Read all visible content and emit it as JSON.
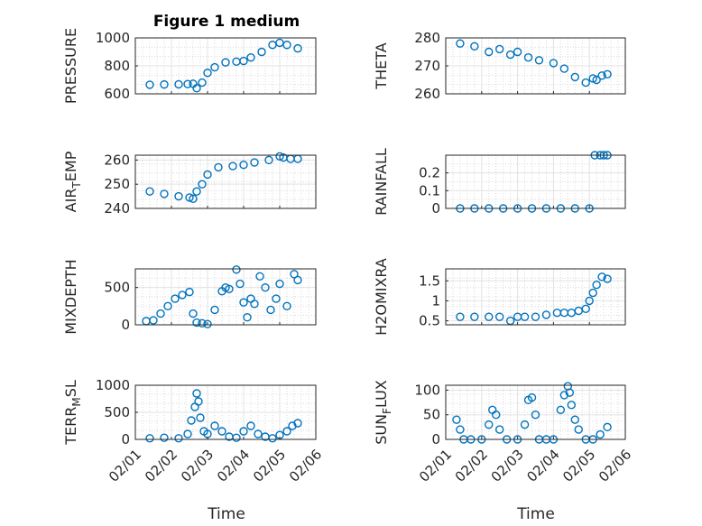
{
  "figure_title": "Figure 1 medium",
  "marker_color": "#0072BD",
  "x_label": "Time",
  "x_tick_labels": [
    "02/01",
    "02/02",
    "02/03",
    "02/04",
    "02/05",
    "02/06"
  ],
  "chart_data": [
    {
      "type": "scatter",
      "title": "Figure 1 medium",
      "ylabel": "PRESSURE",
      "ylabel_parts": [],
      "xlabel": "",
      "xlim": [
        0,
        5
      ],
      "ylim": [
        600,
        1000
      ],
      "yticks": [
        600,
        800,
        1000
      ],
      "ytick_labels": [
        "600",
        "800",
        "1000"
      ],
      "grid": true,
      "x": [
        0.4,
        0.8,
        1.2,
        1.45,
        1.6,
        1.7,
        1.85,
        2.0,
        2.2,
        2.5,
        2.8,
        3.0,
        3.2,
        3.5,
        3.8,
        4.0,
        4.2,
        4.5
      ],
      "y": [
        665,
        667,
        668,
        670,
        672,
        640,
        680,
        750,
        790,
        825,
        830,
        835,
        860,
        900,
        950,
        965,
        950,
        925
      ]
    },
    {
      "type": "scatter",
      "title": "",
      "ylabel": "THETA",
      "ylabel_parts": [],
      "xlabel": "",
      "xlim": [
        0,
        5
      ],
      "ylim": [
        260,
        280
      ],
      "yticks": [
        260,
        270,
        280
      ],
      "ytick_labels": [
        "260",
        "270",
        "280"
      ],
      "grid": true,
      "x": [
        0.4,
        0.8,
        1.2,
        1.5,
        1.8,
        2.0,
        2.3,
        2.6,
        3.0,
        3.3,
        3.6,
        3.9,
        4.1,
        4.2,
        4.35,
        4.5
      ],
      "y": [
        278,
        277,
        275,
        276,
        274,
        275,
        273,
        272,
        271,
        269,
        266,
        264,
        265.5,
        265,
        266.5,
        267
      ]
    },
    {
      "type": "scatter",
      "title": "",
      "ylabel": "",
      "ylabel_parts": [
        "AIR",
        "T",
        "EMP"
      ],
      "xlabel": "",
      "xlim": [
        0,
        5
      ],
      "ylim": [
        240,
        262
      ],
      "yticks": [
        240,
        250,
        260
      ],
      "ytick_labels": [
        "240",
        "250",
        "260"
      ],
      "grid": true,
      "x": [
        0.4,
        0.8,
        1.2,
        1.5,
        1.6,
        1.7,
        1.85,
        2.0,
        2.3,
        2.7,
        3.0,
        3.3,
        3.7,
        4.0,
        4.1,
        4.3,
        4.5
      ],
      "y": [
        247,
        246,
        245,
        244.5,
        244,
        247,
        250,
        254,
        257,
        257.5,
        258,
        259,
        260,
        261.5,
        261,
        260.5,
        260.5
      ]
    },
    {
      "type": "scatter",
      "title": "",
      "ylabel": "RAINFALL",
      "ylabel_parts": [],
      "xlabel": "",
      "xlim": [
        0,
        5
      ],
      "ylim": [
        0,
        0.3
      ],
      "yticks": [
        0,
        0.1,
        0.2
      ],
      "ytick_labels": [
        "0",
        "0.1",
        "0.2"
      ],
      "grid": true,
      "x": [
        0.4,
        0.8,
        1.2,
        1.6,
        2.0,
        2.4,
        2.8,
        3.2,
        3.6,
        4.0,
        4.15,
        4.3,
        4.4,
        4.5
      ],
      "y": [
        0,
        0,
        0,
        0,
        0,
        0,
        0,
        0,
        0,
        0,
        0.3,
        0.3,
        0.3,
        0.3
      ]
    },
    {
      "type": "scatter",
      "title": "",
      "ylabel": "MIXDEPTH",
      "ylabel_parts": [],
      "xlabel": "",
      "xlim": [
        0,
        5
      ],
      "ylim": [
        0,
        750
      ],
      "yticks": [
        0,
        500
      ],
      "ytick_labels": [
        "0",
        "500"
      ],
      "grid": true,
      "x": [
        0.3,
        0.5,
        0.7,
        0.9,
        1.1,
        1.3,
        1.5,
        1.6,
        1.7,
        1.85,
        2.0,
        2.2,
        2.4,
        2.5,
        2.6,
        2.8,
        2.9,
        3.0,
        3.1,
        3.2,
        3.3,
        3.45,
        3.6,
        3.75,
        3.9,
        4.0,
        4.2,
        4.4,
        4.5
      ],
      "y": [
        50,
        60,
        150,
        250,
        350,
        400,
        440,
        150,
        30,
        20,
        10,
        200,
        450,
        500,
        480,
        740,
        550,
        300,
        100,
        350,
        280,
        650,
        500,
        200,
        350,
        550,
        250,
        680,
        600
      ]
    },
    {
      "type": "scatter",
      "title": "",
      "ylabel": "H2OMIXRA",
      "ylabel_parts": [],
      "xlabel": "",
      "xlim": [
        0,
        5
      ],
      "ylim": [
        0.4,
        1.8
      ],
      "yticks": [
        0.5,
        1,
        1.5
      ],
      "ytick_labels": [
        "0.5",
        "1",
        "1.5"
      ],
      "grid": true,
      "x": [
        0.4,
        0.8,
        1.2,
        1.5,
        1.8,
        2.0,
        2.2,
        2.5,
        2.8,
        3.1,
        3.3,
        3.5,
        3.7,
        3.9,
        4.0,
        4.1,
        4.2,
        4.35,
        4.5
      ],
      "y": [
        0.6,
        0.6,
        0.6,
        0.6,
        0.5,
        0.6,
        0.6,
        0.6,
        0.65,
        0.7,
        0.7,
        0.7,
        0.75,
        0.8,
        1.0,
        1.2,
        1.4,
        1.6,
        1.55
      ]
    },
    {
      "type": "scatter",
      "title": "",
      "ylabel": "",
      "ylabel_parts": [
        "TERR",
        "M",
        "SL"
      ],
      "xlabel": "Time",
      "xlim": [
        0,
        5
      ],
      "ylim": [
        0,
        1000
      ],
      "yticks": [
        0,
        500,
        1000
      ],
      "ytick_labels": [
        "0",
        "500",
        "1000"
      ],
      "grid": true,
      "x": [
        0.4,
        0.8,
        1.2,
        1.45,
        1.55,
        1.65,
        1.7,
        1.75,
        1.8,
        1.9,
        2.0,
        2.2,
        2.4,
        2.6,
        2.8,
        3.0,
        3.2,
        3.4,
        3.6,
        3.8,
        4.0,
        4.2,
        4.35,
        4.5
      ],
      "y": [
        20,
        30,
        20,
        100,
        350,
        600,
        850,
        700,
        400,
        150,
        100,
        250,
        150,
        50,
        30,
        150,
        250,
        100,
        50,
        20,
        80,
        150,
        250,
        300
      ]
    },
    {
      "type": "scatter",
      "title": "",
      "ylabel": "",
      "ylabel_parts": [
        "SUN",
        "F",
        "LUX"
      ],
      "xlabel": "Time",
      "xlim": [
        0,
        5
      ],
      "ylim": [
        0,
        110
      ],
      "yticks": [
        0,
        50,
        100
      ],
      "ytick_labels": [
        "0",
        "50",
        "100"
      ],
      "grid": true,
      "x": [
        0.3,
        0.4,
        0.5,
        0.7,
        1.0,
        1.2,
        1.3,
        1.4,
        1.5,
        1.7,
        2.0,
        2.2,
        2.3,
        2.4,
        2.5,
        2.6,
        2.8,
        3.0,
        3.2,
        3.3,
        3.4,
        3.45,
        3.5,
        3.6,
        3.7,
        3.9,
        4.1,
        4.3,
        4.5
      ],
      "y": [
        40,
        20,
        0,
        0,
        0,
        30,
        60,
        50,
        20,
        0,
        0,
        30,
        80,
        85,
        50,
        0,
        0,
        0,
        60,
        90,
        108,
        95,
        70,
        40,
        20,
        0,
        0,
        10,
        25
      ]
    }
  ]
}
